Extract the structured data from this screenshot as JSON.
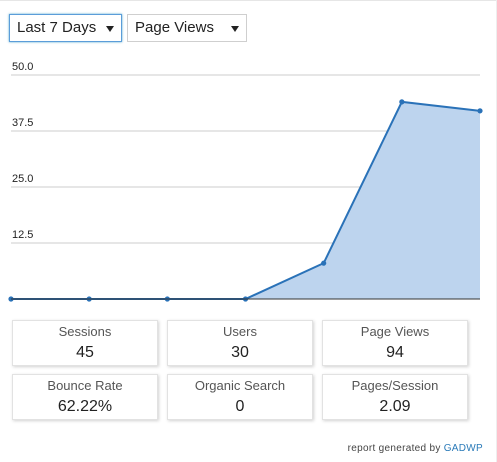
{
  "filters": {
    "period": "Last 7 Days",
    "metric": "Page Views"
  },
  "chart_data": {
    "type": "area",
    "x": [
      1,
      2,
      3,
      4,
      5,
      6,
      7
    ],
    "values": [
      0,
      0,
      0,
      0,
      8,
      44,
      42
    ],
    "ylim": [
      0,
      50
    ],
    "yticks": [
      "12.5",
      "25.0",
      "37.5",
      "50.0"
    ],
    "grid": true,
    "line_color": "#2a72b8",
    "fill_color": "#bdd4ee"
  },
  "stats": [
    {
      "label": "Sessions",
      "value": "45"
    },
    {
      "label": "Users",
      "value": "30"
    },
    {
      "label": "Page Views",
      "value": "94"
    },
    {
      "label": "Bounce Rate",
      "value": "62.22%"
    },
    {
      "label": "Organic Search",
      "value": "0"
    },
    {
      "label": "Pages/Session",
      "value": "2.09"
    }
  ],
  "footer": {
    "text": "report generated by",
    "link": "GADWP"
  }
}
